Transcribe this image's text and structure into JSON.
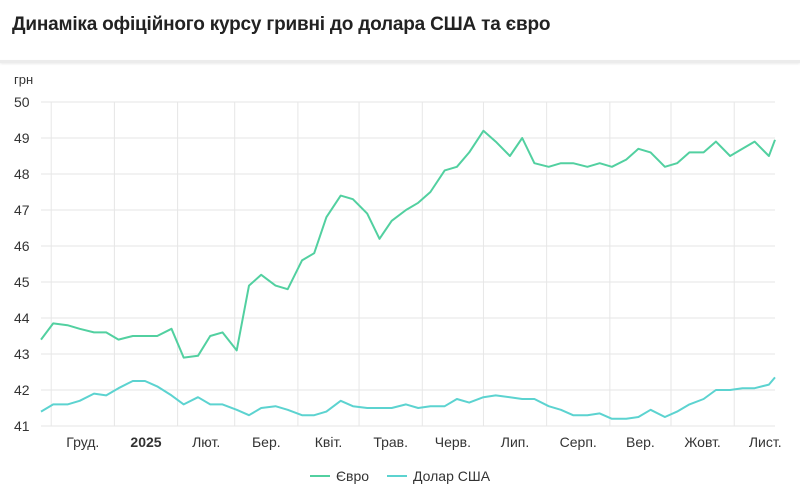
{
  "title": "Динаміка офіційного курсу гривні до долара США та євро",
  "chart_data": {
    "type": "line",
    "ylabel": "грн",
    "ylim": [
      41,
      50
    ],
    "yticks": [
      41,
      42,
      43,
      44,
      45,
      46,
      47,
      48,
      49,
      50
    ],
    "xlim": [
      "2024-11-26",
      "2025-11-21"
    ],
    "xticks": [
      {
        "date": "2024-12-01",
        "label": "Груд.",
        "bold": false
      },
      {
        "date": "2025-01-01",
        "label": "2025",
        "bold": true
      },
      {
        "date": "2025-02-01",
        "label": "Лют.",
        "bold": false
      },
      {
        "date": "2025-03-01",
        "label": "Бер.",
        "bold": false
      },
      {
        "date": "2025-04-01",
        "label": "Квіт.",
        "bold": false
      },
      {
        "date": "2025-05-01",
        "label": "Трав.",
        "bold": false
      },
      {
        "date": "2025-06-01",
        "label": "Черв.",
        "bold": false
      },
      {
        "date": "2025-07-01",
        "label": "Лип.",
        "bold": false
      },
      {
        "date": "2025-08-01",
        "label": "Серп.",
        "bold": false
      },
      {
        "date": "2025-09-01",
        "label": "Вер.",
        "bold": false
      },
      {
        "date": "2025-10-01",
        "label": "Жовт.",
        "bold": false
      },
      {
        "date": "2025-11-01",
        "label": "Лист.",
        "bold": false
      }
    ],
    "grid": true,
    "legend_position": "bottom",
    "x": [
      "2024-11-26",
      "2024-12-02",
      "2024-12-09",
      "2024-12-15",
      "2024-12-22",
      "2024-12-28",
      "2025-01-03",
      "2025-01-10",
      "2025-01-16",
      "2025-01-22",
      "2025-01-29",
      "2025-02-04",
      "2025-02-11",
      "2025-02-17",
      "2025-02-23",
      "2025-03-02",
      "2025-03-08",
      "2025-03-14",
      "2025-03-21",
      "2025-03-27",
      "2025-04-03",
      "2025-04-09",
      "2025-04-15",
      "2025-04-22",
      "2025-04-28",
      "2025-05-05",
      "2025-05-11",
      "2025-05-17",
      "2025-05-24",
      "2025-05-30",
      "2025-06-05",
      "2025-06-12",
      "2025-06-18",
      "2025-06-24",
      "2025-07-01",
      "2025-07-07",
      "2025-07-14",
      "2025-07-20",
      "2025-07-26",
      "2025-08-02",
      "2025-08-08",
      "2025-08-14",
      "2025-08-21",
      "2025-08-27",
      "2025-09-02",
      "2025-09-09",
      "2025-09-15",
      "2025-09-21",
      "2025-09-28",
      "2025-10-04",
      "2025-10-10",
      "2025-10-17",
      "2025-10-23",
      "2025-10-30",
      "2025-11-05",
      "2025-11-11",
      "2025-11-18",
      "2025-11-21"
    ],
    "series": [
      {
        "name": "Євро",
        "color": "#52d0a0",
        "values": [
          43.4,
          43.85,
          43.8,
          43.7,
          43.6,
          43.6,
          43.4,
          43.5,
          43.5,
          43.5,
          43.7,
          42.9,
          42.95,
          43.5,
          43.6,
          43.1,
          44.9,
          45.2,
          44.9,
          44.8,
          45.6,
          45.8,
          46.8,
          47.4,
          47.3,
          46.9,
          46.2,
          46.7,
          47.0,
          47.2,
          47.5,
          48.1,
          48.2,
          48.6,
          49.2,
          48.9,
          48.5,
          49.0,
          48.3,
          48.2,
          48.3,
          48.3,
          48.2,
          48.3,
          48.2,
          48.4,
          48.7,
          48.6,
          48.2,
          48.3,
          48.6,
          48.6,
          48.9,
          48.5,
          48.7,
          48.9,
          48.5,
          48.95
        ]
      },
      {
        "name": "Долар США",
        "color": "#5cd3d0",
        "values": [
          41.4,
          41.6,
          41.6,
          41.7,
          41.9,
          41.85,
          42.05,
          42.25,
          42.25,
          42.1,
          41.85,
          41.6,
          41.8,
          41.6,
          41.6,
          41.45,
          41.3,
          41.5,
          41.55,
          41.45,
          41.3,
          41.3,
          41.4,
          41.7,
          41.55,
          41.5,
          41.5,
          41.5,
          41.6,
          41.5,
          41.55,
          41.55,
          41.75,
          41.65,
          41.8,
          41.85,
          41.8,
          41.75,
          41.75,
          41.55,
          41.45,
          41.3,
          41.3,
          41.35,
          41.2,
          41.2,
          41.25,
          41.45,
          41.25,
          41.4,
          41.6,
          41.75,
          42.0,
          42.0,
          42.05,
          42.05,
          42.15,
          42.35
        ]
      }
    ]
  }
}
